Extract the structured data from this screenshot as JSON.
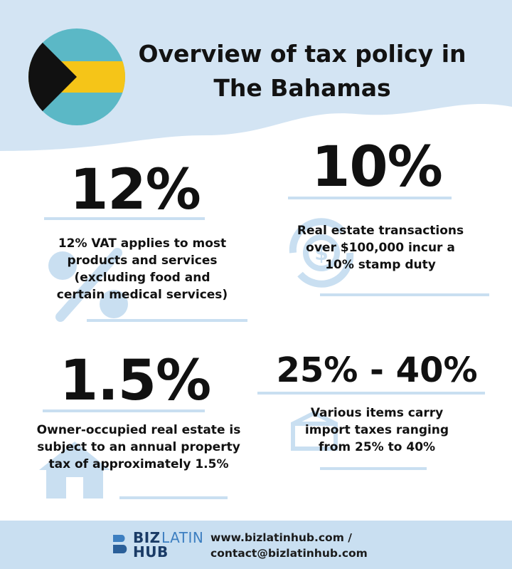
{
  "header": {
    "title_line1": "Overview of tax policy in",
    "title_line2": "The Bahamas"
  },
  "flag": {
    "country": "The Bahamas",
    "colors": {
      "aquamarine": "#5bb8c6",
      "gold": "#f5c518",
      "black": "#111111"
    }
  },
  "stats": [
    {
      "value": "12%",
      "description_lines": [
        "12% VAT applies to most",
        "products and services",
        "(excluding food and",
        "certain medical services)"
      ],
      "icon": "percent-icon"
    },
    {
      "value": "10%",
      "description_lines": [
        "Real estate transactions",
        "over $100,000 incur a",
        "10% stamp duty"
      ],
      "icon": "dollar-cycle-icon"
    },
    {
      "value": "1.5%",
      "description_lines": [
        "Owner-occupied real estate is",
        "subject to an annual property",
        "tax of approximately 1.5%"
      ],
      "icon": "house-icon"
    },
    {
      "value": "25% - 40%",
      "description_lines": [
        "Various items carry",
        "import taxes ranging",
        "from 25% to 40%"
      ],
      "icon": "package-icon"
    }
  ],
  "footer": {
    "logo_biz": "BIZ",
    "logo_latin": "LATIN",
    "logo_hub": "HUB",
    "website": "www.bizlatinhub.com /",
    "email": "contact@bizlatinhub.com"
  },
  "colors": {
    "light_blue": "#c9dff1",
    "text": "#111111",
    "brand_blue": "#3d7fc1"
  }
}
